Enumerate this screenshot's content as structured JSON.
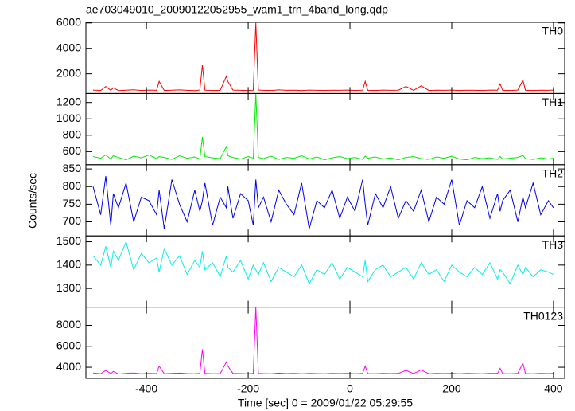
{
  "chart_data": {
    "type": "line",
    "title": "ae703049010_20090122052955_wam1_trn_4band_long.qdp",
    "xlabel": "Time [sec] 0 = 2009/01/22 05:29:55",
    "ylabel": "Counts/sec",
    "xlim": [
      -519,
      422
    ],
    "xticks": [
      -400,
      -200,
      0,
      200,
      400
    ],
    "x": [
      -505,
      -490,
      -480,
      -470,
      -465,
      -455,
      -440,
      -425,
      -410,
      -395,
      -380,
      -375,
      -365,
      -350,
      -335,
      -320,
      -305,
      -295,
      -290,
      -285,
      -270,
      -255,
      -243,
      -240,
      -230,
      -215,
      -200,
      -190,
      -185,
      -180,
      -170,
      -155,
      -140,
      -125,
      -110,
      -95,
      -80,
      -65,
      -50,
      -35,
      -20,
      -5,
      10,
      25,
      30,
      35,
      50,
      65,
      80,
      95,
      110,
      125,
      140,
      155,
      170,
      185,
      200,
      215,
      230,
      245,
      260,
      275,
      290,
      295,
      300,
      315,
      330,
      340,
      345,
      360,
      375,
      390,
      400
    ],
    "series": [
      {
        "name": "TH0",
        "color": "#ff0000",
        "ylim": [
          450,
          6050
        ],
        "yticks": [
          2000,
          4000,
          6000
        ],
        "values": [
          720,
          690,
          1000,
          700,
          900,
          680,
          710,
          740,
          690,
          720,
          700,
          1400,
          690,
          710,
          730,
          700,
          680,
          720,
          2700,
          710,
          690,
          700,
          1800,
          1400,
          720,
          700,
          680,
          710,
          6000,
          720,
          700,
          690,
          730,
          700,
          710,
          680,
          720,
          700,
          690,
          710,
          700,
          720,
          690,
          710,
          1400,
          700,
          690,
          720,
          700,
          710,
          1000,
          700,
          1050,
          690,
          710,
          700,
          720,
          690,
          710,
          700,
          690,
          720,
          710,
          1200,
          700,
          690,
          720,
          1500,
          700,
          690,
          710,
          700,
          720
        ]
      },
      {
        "name": "TH1",
        "color": "#00ee00",
        "ylim": [
          440,
          1310
        ],
        "yticks": [
          600,
          800,
          1000,
          1200
        ],
        "values": [
          540,
          520,
          560,
          510,
          550,
          530,
          500,
          545,
          525,
          560,
          515,
          540,
          530,
          505,
          550,
          520,
          535,
          510,
          780,
          540,
          525,
          515,
          660,
          550,
          530,
          510,
          540,
          520,
          1310,
          530,
          515,
          545,
          505,
          530,
          520,
          550,
          510,
          535,
          500,
          525,
          540,
          515,
          530,
          505,
          545,
          520,
          535,
          510,
          525,
          500,
          530,
          540,
          515,
          505,
          535,
          520,
          545,
          510,
          500,
          530,
          515,
          525,
          505,
          540,
          510,
          520,
          530,
          555,
          515,
          505,
          525,
          510,
          520
        ]
      },
      {
        "name": "TH2",
        "color": "#0000ee",
        "ylim": [
          660,
          862
        ],
        "yticks": [
          700,
          750,
          800,
          850
        ],
        "values": [
          800,
          720,
          830,
          690,
          780,
          740,
          810,
          700,
          770,
          760,
          720,
          790,
          680,
          820,
          750,
          700,
          790,
          730,
          760,
          810,
          690,
          770,
          740,
          800,
          710,
          780,
          760,
          690,
          820,
          740,
          770,
          700,
          790,
          750,
          720,
          810,
          680,
          760,
          740,
          790,
          710,
          770,
          730,
          820,
          750,
          690,
          780,
          740,
          800,
          710,
          760,
          730,
          790,
          700,
          770,
          750,
          820,
          690,
          760,
          740,
          800,
          710,
          780,
          730,
          760,
          790,
          700,
          770,
          740,
          810,
          720,
          760,
          740
        ]
      },
      {
        "name": "TH3",
        "color": "#00eeee",
        "ylim": [
          1220,
          1525
        ],
        "yticks": [
          1300,
          1400,
          1500
        ],
        "values": [
          1440,
          1400,
          1480,
          1390,
          1460,
          1420,
          1500,
          1380,
          1450,
          1410,
          1430,
          1370,
          1470,
          1400,
          1440,
          1360,
          1420,
          1390,
          1460,
          1380,
          1410,
          1350,
          1440,
          1390,
          1370,
          1420,
          1340,
          1400,
          1380,
          1360,
          1410,
          1330,
          1390,
          1370,
          1350,
          1400,
          1320,
          1380,
          1360,
          1410,
          1340,
          1390,
          1370,
          1350,
          1420,
          1330,
          1380,
          1400,
          1350,
          1370,
          1390,
          1340,
          1410,
          1360,
          1380,
          1330,
          1400,
          1370,
          1350,
          1390,
          1360,
          1410,
          1340,
          1380,
          1370,
          1320,
          1400,
          1360,
          1390,
          1350,
          1380,
          1370,
          1360
        ]
      },
      {
        "name": "TH0123",
        "color": "#ff00ff",
        "ylim": [
          2940,
          9740
        ],
        "yticks": [
          4000,
          6000,
          8000
        ],
        "values": [
          3450,
          3380,
          3700,
          3400,
          3600,
          3350,
          3420,
          3460,
          3380,
          3420,
          3400,
          4100,
          3380,
          3410,
          3440,
          3400,
          3370,
          3420,
          5700,
          3410,
          3380,
          3400,
          4500,
          4100,
          3420,
          3400,
          3370,
          3410,
          9740,
          3420,
          3400,
          3380,
          3440,
          3400,
          3410,
          3370,
          3420,
          3400,
          3380,
          3410,
          3400,
          3420,
          3380,
          3410,
          4100,
          3400,
          3380,
          3420,
          3400,
          3410,
          3700,
          3400,
          3750,
          3380,
          3410,
          3400,
          3420,
          3380,
          3410,
          3400,
          3380,
          3420,
          3410,
          3900,
          3400,
          3380,
          3420,
          4400,
          3400,
          3380,
          3410,
          3400,
          3420
        ]
      }
    ]
  }
}
